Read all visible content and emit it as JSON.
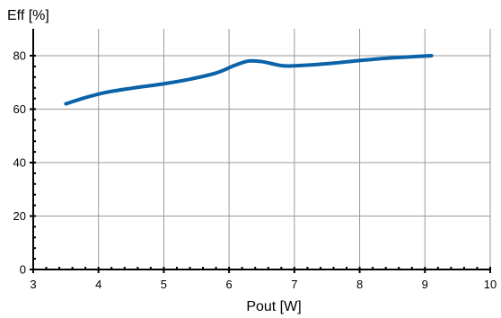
{
  "chart_data": {
    "type": "line",
    "title": "",
    "xlabel": "Pout [W]",
    "ylabel": "Eff [%]",
    "xlim": [
      3,
      10
    ],
    "ylim": [
      0,
      90
    ],
    "x_ticks": [
      "3",
      "4",
      "5",
      "6",
      "7",
      "8",
      "9",
      "10"
    ],
    "y_ticks": [
      "0",
      "20",
      "40",
      "60",
      "80"
    ],
    "grid": true,
    "legend": "none",
    "series": [
      {
        "color": "#0a63a8",
        "x": [
          3.5,
          3.8,
          4.1,
          4.5,
          5.0,
          5.4,
          5.8,
          6.1,
          6.3,
          6.5,
          6.8,
          7.0,
          7.5,
          8.0,
          8.5,
          9.1
        ],
        "y": [
          62.0,
          64.3,
          66.2,
          67.8,
          69.5,
          71.2,
          73.5,
          76.5,
          78.0,
          77.8,
          76.3,
          76.2,
          77.0,
          78.2,
          79.2,
          80.0
        ]
      }
    ]
  }
}
